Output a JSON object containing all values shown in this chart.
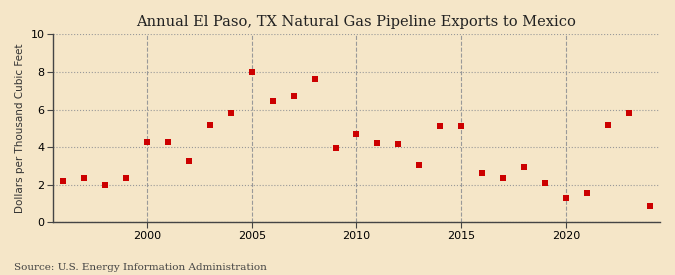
{
  "title": "Annual El Paso, TX Natural Gas Pipeline Exports to Mexico",
  "ylabel": "Dollars per Thousand Cubic Feet",
  "source": "Source: U.S. Energy Information Administration",
  "background_color": "#f5e6c8",
  "plot_background_color": "#f5e6c8",
  "marker_color": "#cc0000",
  "marker": "s",
  "marker_size": 4,
  "xlim": [
    1995.5,
    2024.5
  ],
  "ylim": [
    0,
    10
  ],
  "yticks": [
    0,
    2,
    4,
    6,
    8,
    10
  ],
  "xticks": [
    2000,
    2005,
    2010,
    2015,
    2020
  ],
  "grid_color": "#999999",
  "title_fontsize": 10.5,
  "label_fontsize": 7.5,
  "tick_fontsize": 8,
  "source_fontsize": 7.5,
  "years": [
    1996,
    1997,
    1998,
    1999,
    2000,
    2001,
    2002,
    2003,
    2004,
    2005,
    2006,
    2007,
    2008,
    2009,
    2010,
    2011,
    2012,
    2013,
    2014,
    2015,
    2016,
    2017,
    2018,
    2019,
    2020,
    2021,
    2022,
    2023,
    2024
  ],
  "values": [
    2.2,
    2.35,
    2.0,
    2.35,
    4.3,
    4.3,
    3.25,
    5.2,
    5.8,
    8.0,
    6.45,
    6.7,
    7.6,
    3.95,
    4.7,
    4.2,
    4.15,
    3.05,
    5.15,
    5.15,
    2.65,
    2.35,
    2.95,
    2.1,
    1.3,
    1.55,
    5.2,
    5.8,
    0.85
  ]
}
